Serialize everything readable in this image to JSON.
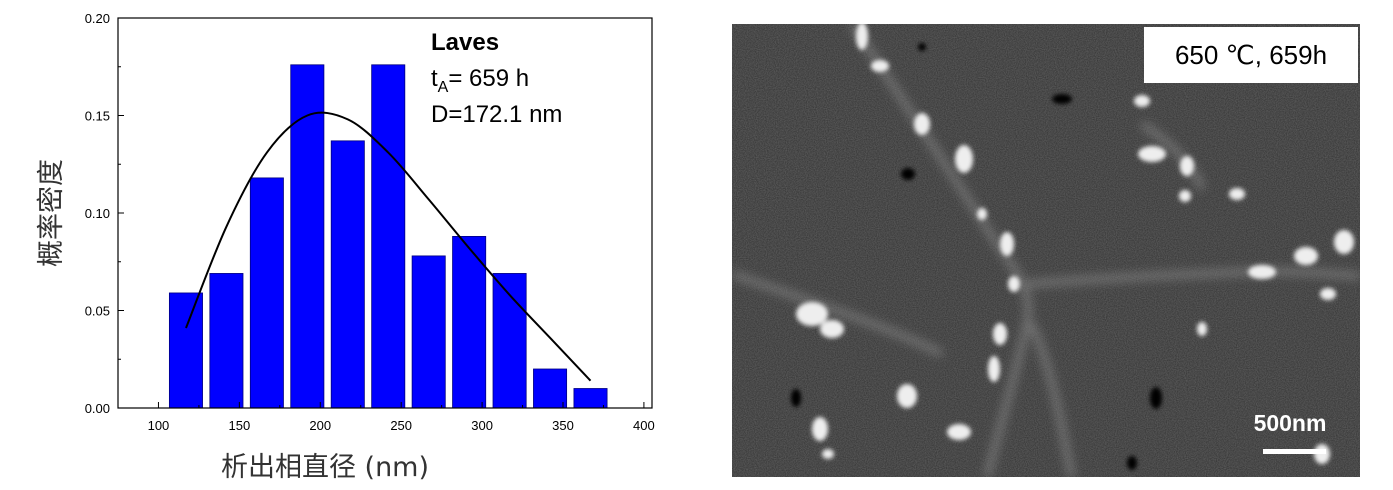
{
  "chart_data": {
    "type": "bar",
    "x": [
      117,
      142,
      167,
      192,
      217,
      242,
      267,
      292,
      317,
      342,
      367
    ],
    "values": [
      0.059,
      0.069,
      0.118,
      0.176,
      0.137,
      0.176,
      0.078,
      0.088,
      0.069,
      0.02,
      0.01
    ],
    "fit_curve": {
      "type": "fitted distribution",
      "x": [
        117,
        142,
        167,
        192,
        217,
        242,
        267,
        292,
        317,
        342,
        367
      ],
      "y": [
        0.041,
        0.093,
        0.131,
        0.15,
        0.148,
        0.131,
        0.107,
        0.082,
        0.058,
        0.036,
        0.014
      ]
    },
    "xlabel": "析出相直径 (nm)",
    "ylabel": "概率密度",
    "xlim": [
      75,
      405
    ],
    "ylim": [
      0,
      0.2
    ],
    "xticks": [
      "100",
      "150",
      "200",
      "250",
      "300",
      "350",
      "400"
    ],
    "yticks": [
      "0.00",
      "0.05",
      "0.10",
      "0.15",
      "0.20"
    ],
    "annotations": [
      "Laves",
      "t",
      "A",
      "= 659 h",
      "D=172.1 nm"
    ],
    "colors": {
      "bar_fill": "#0000ff",
      "bar_edge": "#000080",
      "curve": "#000000"
    },
    "grid": false
  },
  "image_panel": {
    "label": "650 ℃, 659h",
    "scale_bar_label": "500nm"
  }
}
